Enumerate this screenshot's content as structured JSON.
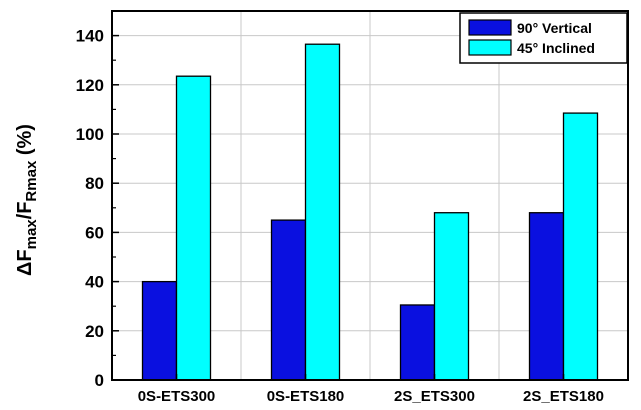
{
  "chart_data": {
    "type": "bar",
    "categories": [
      "0S-ETS300",
      "0S-ETS180",
      "2S_ETS300",
      "2S_ETS180"
    ],
    "series": [
      {
        "name": "90° Vertical",
        "values": [
          40,
          65,
          30.5,
          68
        ],
        "color": "#0a10e0"
      },
      {
        "name": "45° Inclined",
        "values": [
          123.5,
          136.5,
          68,
          108.5
        ],
        "color": "#00ffff"
      }
    ],
    "ylabel": {
      "prefix": "ΔF",
      "sub1": "max",
      "mid": "/F",
      "sub2": "Rmax",
      "suffix": " (%)"
    },
    "ylim": [
      0,
      150
    ],
    "yticks": [
      0,
      20,
      40,
      60,
      80,
      100,
      120,
      140
    ],
    "grid": true,
    "legend_position": "top-right"
  }
}
